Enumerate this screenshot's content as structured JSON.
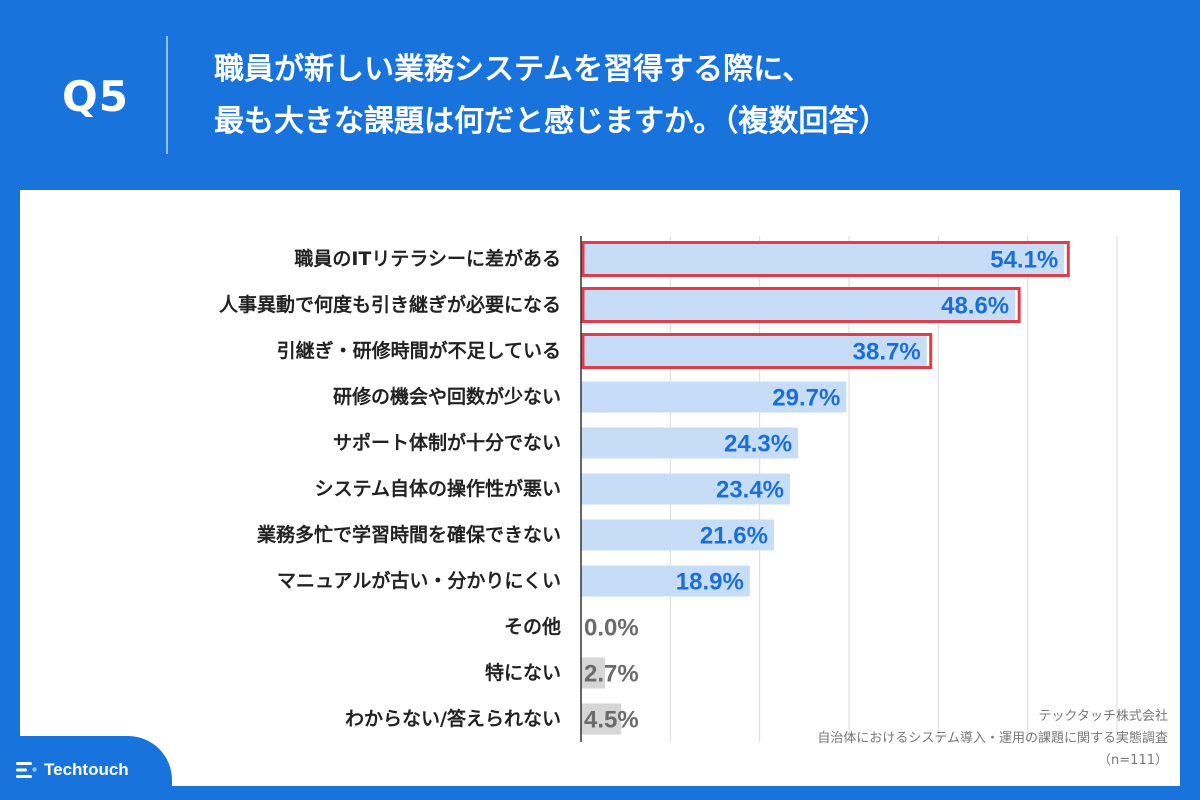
{
  "header": {
    "qnum": "Q5",
    "title_lines": [
      "職員が新しい業務システムを習得する際に、",
      "最も大きな課題は何だと感じますか。（複数回答）"
    ]
  },
  "chart_data": {
    "type": "bar",
    "orientation": "horizontal",
    "categories": [
      "職員のITリテラシーに差がある",
      "人事異動で何度も引き継ぎが必要になる",
      "引継ぎ・研修時間が不足している",
      "研修の機会や回数が少ない",
      "サポート体制が十分でない",
      "システム自体の操作性が悪い",
      "業務多忙で学習時間を確保できない",
      "マニュアルが古い・分かりにくい",
      "その他",
      "特にない",
      "わからない/答えられない"
    ],
    "values": [
      54.1,
      48.6,
      38.7,
      29.7,
      24.3,
      23.4,
      21.6,
      18.9,
      0.0,
      2.7,
      4.5
    ],
    "value_labels": [
      "54.1%",
      "48.6%",
      "38.7%",
      "29.7%",
      "24.3%",
      "23.4%",
      "21.6%",
      "18.9%",
      "0.0%",
      "2.7%",
      "4.5%"
    ],
    "highlighted": [
      true,
      true,
      true,
      false,
      false,
      false,
      false,
      false,
      false,
      false,
      false
    ],
    "muted": [
      false,
      false,
      false,
      false,
      false,
      false,
      false,
      false,
      true,
      true,
      true
    ],
    "xlim": [
      0,
      60
    ],
    "grid": true,
    "colors": {
      "bar": "#c6dcf7",
      "bar_muted": "#d6d6d6",
      "label": "#1a6fd6",
      "label_muted": "#6b6b6b",
      "highlight_border": "#e23b4a",
      "category_text": "#222222",
      "grid": "#d9d9d9",
      "axis": "#333333"
    }
  },
  "footer": {
    "credit_lines": [
      "テックタッチ株式会社",
      "自治体におけるシステム導入・運用の課題に関する実態調査",
      "（n=111）"
    ],
    "logo_text": "Techtouch"
  }
}
